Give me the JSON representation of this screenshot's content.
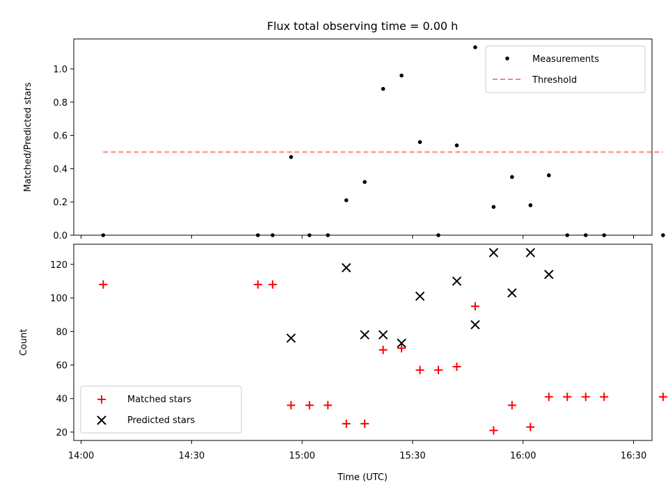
{
  "chart_data": [
    {
      "type": "scatter",
      "title": "Flux total observing time = 0.00 h",
      "xlabel": "",
      "ylabel": "Matched/Predicted stars",
      "xlim": [
        "13:58",
        "16:35"
      ],
      "ylim": [
        0,
        1.18
      ],
      "yticks": [
        "0.0",
        "0.2",
        "0.4",
        "0.6",
        "0.8",
        "1.0"
      ],
      "grid": false,
      "legend_position": "top-right",
      "series": [
        {
          "name": "Measurements",
          "kind": "scatter",
          "marker": "dot",
          "color": "#000000",
          "points": [
            {
              "x": "14:06",
              "y": 0.0
            },
            {
              "x": "14:48",
              "y": 0.0
            },
            {
              "x": "14:52",
              "y": 0.0
            },
            {
              "x": "14:57",
              "y": 0.47
            },
            {
              "x": "15:02",
              "y": 0.0
            },
            {
              "x": "15:07",
              "y": 0.0
            },
            {
              "x": "15:12",
              "y": 0.21
            },
            {
              "x": "15:17",
              "y": 0.32
            },
            {
              "x": "15:22",
              "y": 0.88
            },
            {
              "x": "15:27",
              "y": 0.96
            },
            {
              "x": "15:32",
              "y": 0.56
            },
            {
              "x": "15:37",
              "y": 0.0
            },
            {
              "x": "15:42",
              "y": 0.54
            },
            {
              "x": "15:47",
              "y": 1.13
            },
            {
              "x": "15:52",
              "y": 0.17
            },
            {
              "x": "15:57",
              "y": 0.35
            },
            {
              "x": "16:02",
              "y": 0.18
            },
            {
              "x": "16:07",
              "y": 0.36
            },
            {
              "x": "16:12",
              "y": 0.0
            },
            {
              "x": "16:17",
              "y": 0.0
            },
            {
              "x": "16:22",
              "y": 0.0
            },
            {
              "x": "16:38",
              "y": 0.0
            }
          ]
        },
        {
          "name": "Threshold",
          "kind": "dashed-line",
          "color": "#ff7f7f",
          "points": [
            {
              "x": "14:06",
              "y": 0.5
            },
            {
              "x": "16:38",
              "y": 0.5
            }
          ]
        }
      ]
    },
    {
      "type": "scatter",
      "title": "",
      "xlabel": "Time (UTC)",
      "ylabel": "Count",
      "xlim": [
        "13:58",
        "16:35"
      ],
      "ylim": [
        15,
        132
      ],
      "xticks": [
        "14:00",
        "14:30",
        "15:00",
        "15:30",
        "16:00",
        "16:30"
      ],
      "yticks": [
        "20",
        "40",
        "60",
        "80",
        "100",
        "120"
      ],
      "grid": false,
      "legend_position": "bottom-left",
      "series": [
        {
          "name": "Matched stars",
          "kind": "scatter",
          "marker": "plus",
          "color": "#ff0000",
          "points": [
            {
              "x": "14:06",
              "y": 108
            },
            {
              "x": "14:48",
              "y": 108
            },
            {
              "x": "14:52",
              "y": 108
            },
            {
              "x": "14:57",
              "y": 36
            },
            {
              "x": "15:02",
              "y": 36
            },
            {
              "x": "15:07",
              "y": 36
            },
            {
              "x": "15:12",
              "y": 25
            },
            {
              "x": "15:17",
              "y": 25
            },
            {
              "x": "15:22",
              "y": 69
            },
            {
              "x": "15:27",
              "y": 70
            },
            {
              "x": "15:32",
              "y": 57
            },
            {
              "x": "15:37",
              "y": 57
            },
            {
              "x": "15:42",
              "y": 59
            },
            {
              "x": "15:47",
              "y": 95
            },
            {
              "x": "15:52",
              "y": 21
            },
            {
              "x": "15:57",
              "y": 36
            },
            {
              "x": "16:02",
              "y": 23
            },
            {
              "x": "16:07",
              "y": 41
            },
            {
              "x": "16:12",
              "y": 41
            },
            {
              "x": "16:17",
              "y": 41
            },
            {
              "x": "16:22",
              "y": 41
            },
            {
              "x": "16:38",
              "y": 41
            }
          ]
        },
        {
          "name": "Predicted stars",
          "kind": "scatter",
          "marker": "x",
          "color": "#000000",
          "points": [
            {
              "x": "14:57",
              "y": 76
            },
            {
              "x": "15:12",
              "y": 118
            },
            {
              "x": "15:17",
              "y": 78
            },
            {
              "x": "15:22",
              "y": 78
            },
            {
              "x": "15:27",
              "y": 73
            },
            {
              "x": "15:32",
              "y": 101
            },
            {
              "x": "15:42",
              "y": 110
            },
            {
              "x": "15:47",
              "y": 84
            },
            {
              "x": "15:52",
              "y": 127
            },
            {
              "x": "15:57",
              "y": 103
            },
            {
              "x": "16:02",
              "y": 127
            },
            {
              "x": "16:07",
              "y": 114
            }
          ]
        }
      ]
    }
  ]
}
